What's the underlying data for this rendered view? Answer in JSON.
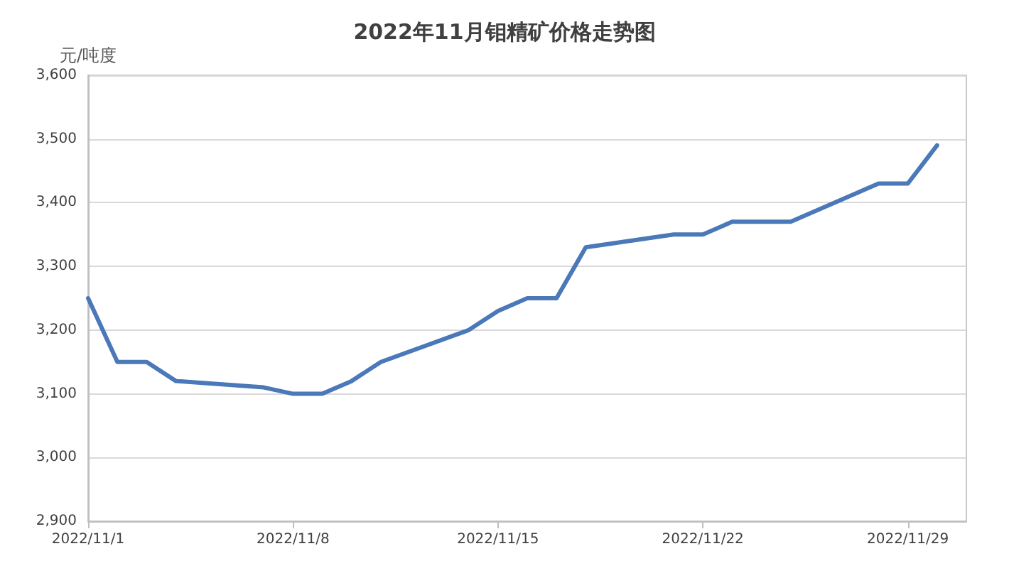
{
  "chart_data": {
    "type": "line",
    "title": "2022年11月钼精矿价格走势图",
    "ylabel": "元/吨度",
    "x": [
      "2022-11-01",
      "2022-11-02",
      "2022-11-03",
      "2022-11-04",
      "2022-11-07",
      "2022-11-08",
      "2022-11-09",
      "2022-11-10",
      "2022-11-11",
      "2022-11-14",
      "2022-11-15",
      "2022-11-16",
      "2022-11-17",
      "2022-11-18",
      "2022-11-21",
      "2022-11-22",
      "2022-11-23",
      "2022-11-24",
      "2022-11-25",
      "2022-11-28",
      "2022-11-29",
      "2022-11-30"
    ],
    "series": [
      {
        "color": "#4a78b8",
        "values": [
          3250,
          3150,
          3150,
          3120,
          3110,
          3100,
          3100,
          3120,
          3150,
          3200,
          3230,
          3250,
          3250,
          3330,
          3350,
          3350,
          3370,
          3370,
          3370,
          3430,
          3430,
          3490
        ]
      }
    ],
    "xlim": [
      "2022-11-01",
      "2022-12-01"
    ],
    "xticks": [
      {
        "value": "2022-11-01",
        "label": "2022/11/1"
      },
      {
        "value": "2022-11-08",
        "label": "2022/11/8"
      },
      {
        "value": "2022-11-15",
        "label": "2022/11/15"
      },
      {
        "value": "2022-11-22",
        "label": "2022/11/22"
      },
      {
        "value": "2022-11-29",
        "label": "2022/11/29"
      }
    ],
    "ylim": [
      2900,
      3600
    ],
    "yticks": [
      {
        "value": 2900,
        "label": "2,900"
      },
      {
        "value": 3000,
        "label": "3,000"
      },
      {
        "value": 3100,
        "label": "3,100"
      },
      {
        "value": 3200,
        "label": "3,200"
      },
      {
        "value": 3300,
        "label": "3,300"
      },
      {
        "value": 3400,
        "label": "3,400"
      },
      {
        "value": 3500,
        "label": "3,500"
      },
      {
        "value": 3600,
        "label": "3,600"
      }
    ],
    "grid": "y",
    "marker": "none",
    "line_style": "solid"
  }
}
